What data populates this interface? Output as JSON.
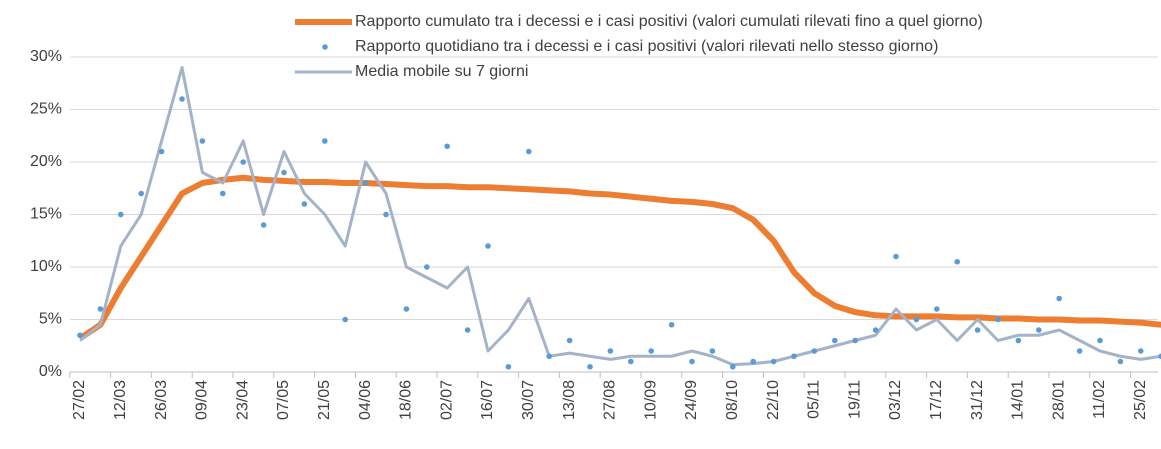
{
  "chart_data": {
    "type": "line",
    "categories": [
      "27/02",
      null,
      "12/03",
      null,
      "26/03",
      null,
      "09/04",
      null,
      "23/04",
      null,
      "07/05",
      null,
      "21/05",
      null,
      "04/06",
      null,
      "18/06",
      null,
      "02/07",
      null,
      "16/07",
      null,
      "30/07",
      null,
      "13/08",
      null,
      "27/08",
      null,
      "10/09",
      null,
      "24/09",
      null,
      "08/10",
      null,
      "22/10",
      null,
      "05/11",
      null,
      "19/11",
      null,
      "03/12",
      null,
      "17/12",
      null,
      "31/12",
      null,
      "14/01",
      null,
      "28/01",
      null,
      "11/02",
      null,
      "25/02",
      null
    ],
    "series": [
      {
        "name": "Rapporto cumulato tra i decessi e i casi positivi (valori cumulati rilevati fino a quel giorno)",
        "color": "#ED7D31",
        "style": "line",
        "width": 6,
        "values": [
          3.2,
          4.5,
          8,
          11,
          14,
          17,
          18,
          18.3,
          18.5,
          18.3,
          18.2,
          18.1,
          18.1,
          18,
          18,
          17.9,
          17.8,
          17.7,
          17.7,
          17.6,
          17.6,
          17.5,
          17.4,
          17.3,
          17.2,
          17,
          16.9,
          16.7,
          16.5,
          16.3,
          16.2,
          16,
          15.6,
          14.5,
          12.5,
          9.5,
          7.5,
          6.3,
          5.7,
          5.4,
          5.3,
          5.3,
          5.3,
          5.2,
          5.2,
          5.1,
          5.1,
          5,
          5,
          4.9,
          4.9,
          4.8,
          4.7,
          4.5
        ]
      },
      {
        "name": "Rapporto quotidiano tra i decessi e i casi positivi (valori rilevati nello stesso giorno)",
        "color": "#5B9BD5",
        "style": "scatter",
        "values": [
          3.5,
          6,
          15,
          17,
          21,
          26,
          22,
          17,
          20,
          14,
          19,
          16,
          22,
          5,
          18,
          15,
          6,
          10,
          21.5,
          4,
          12,
          0.5,
          21,
          1.5,
          3,
          0.5,
          2,
          1,
          2,
          4.5,
          1,
          2,
          0.5,
          1,
          1,
          1.5,
          2,
          3,
          3,
          4,
          11,
          5,
          6,
          10.5,
          4,
          5,
          3,
          4,
          7,
          2,
          3,
          1,
          2,
          1.5
        ]
      },
      {
        "name": "Media mobile su 7 giorni",
        "color": "#A5B3C8",
        "style": "line",
        "width": 3,
        "values": [
          3,
          4.5,
          12,
          15,
          22,
          29,
          19,
          18,
          22,
          15,
          21,
          17,
          15,
          12,
          20,
          17,
          10,
          9,
          8,
          10,
          2,
          4,
          7,
          1.5,
          1.8,
          1.5,
          1.2,
          1.5,
          1.5,
          1.5,
          2,
          1.5,
          0.7,
          0.8,
          1,
          1.5,
          2,
          2.5,
          3,
          3.5,
          6,
          4,
          5,
          3,
          5,
          3,
          3.5,
          3.5,
          4,
          3,
          2,
          1.5,
          1.2,
          1.5
        ]
      }
    ],
    "ylim": [
      0,
      30
    ],
    "yticks": [
      {
        "value": 0,
        "label": "0%"
      },
      {
        "value": 5,
        "label": "5%"
      },
      {
        "value": 10,
        "label": "10%"
      },
      {
        "value": 15,
        "label": "15%"
      },
      {
        "value": 20,
        "label": "20%"
      },
      {
        "value": 25,
        "label": "25%"
      },
      {
        "value": 30,
        "label": "30%"
      }
    ],
    "grid": true
  }
}
